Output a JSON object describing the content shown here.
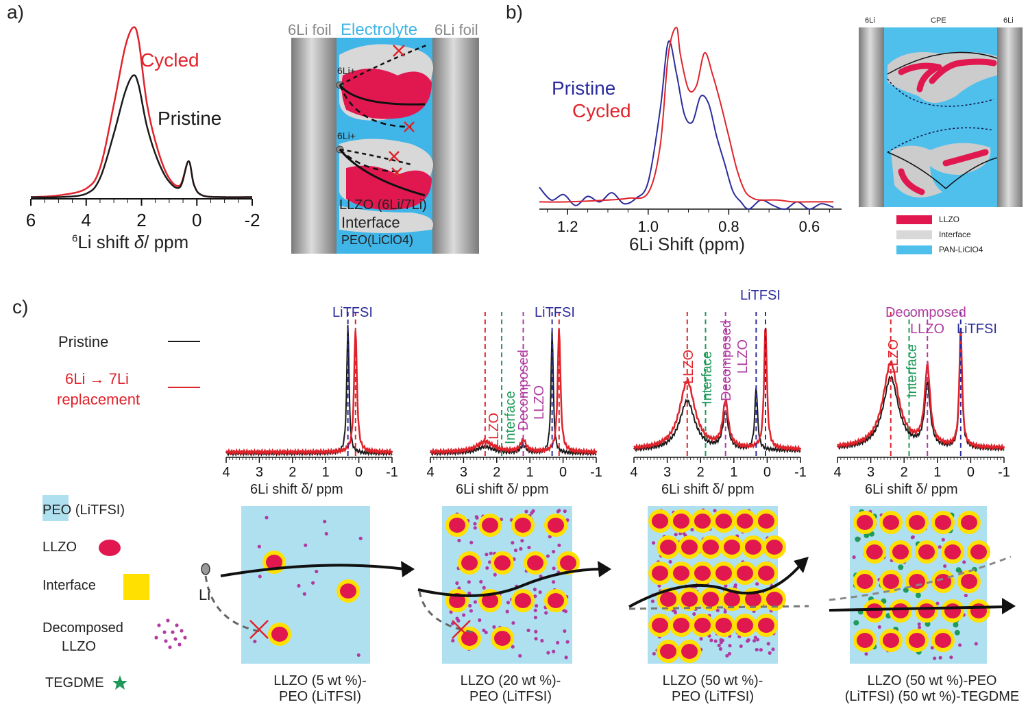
{
  "panel_letters": {
    "a": "a)",
    "b": "b)",
    "c": "c)"
  },
  "a": {
    "legend_cycled": "Cycled",
    "legend_pristine": "Pristine",
    "xlabel": "6Li shift  δ / ppm",
    "xlabel_parts": {
      "sup": "6",
      "main": "Li shift ",
      "delta": "δ",
      "unit": "/ ppm"
    },
    "ticks": [
      "6",
      "4",
      "2",
      "0",
      "-2"
    ],
    "schem": {
      "left_foil": "6Li foil",
      "electrolyte": "Electrolyte",
      "right_foil": "6Li foil",
      "li_ion_1": "6Li+",
      "li_ion_2": "6Li+",
      "llzo": "LLZO (6Li/7Li)",
      "interface": "Interface",
      "peo": "PEO(LiClO4)"
    }
  },
  "b": {
    "legend_pristine": "Pristine",
    "legend_cycled": "Cycled",
    "xlabel": "6Li Shift (ppm)",
    "ticks": [
      "1.2",
      "1.0",
      "0.8",
      "0.6"
    ],
    "schem": {
      "left": "6Li",
      "middle": "CPE",
      "right": "6Li",
      "legend": [
        "LLZO",
        "Interface",
        "PAN-LiClO4"
      ]
    }
  },
  "c": {
    "legend_pristine": "Pristine",
    "legend_replace_1": "6Li → 7Li",
    "legend_replace_2": "replacement",
    "ticks": [
      "4",
      "3",
      "2",
      "1",
      "0",
      "-1"
    ],
    "xlabel": "6Li shift δ/ ppm",
    "spectra_labels": {
      "s1": {
        "litfsi": "LiTFSI"
      },
      "s2": {
        "litfsi": "LiTFSI",
        "llzo": "LLZO",
        "interface": "Interface",
        "decomposed": "Decomposed",
        "llzo2": "LLZO"
      },
      "s3": {
        "litfsi": "LiTFSI",
        "llzo": "LLZO",
        "interface": "Interface",
        "decomposed": "Decomposed",
        "llzo2": "LLZO"
      },
      "s4": {
        "llzo": "LLZO",
        "interface": "Interface",
        "decomposed": "Decomposed",
        "llzo2": "LLZO",
        "litfsi": "LiTFSI"
      }
    },
    "legend_items": [
      "PEO (LiTFSI)",
      "LLZO",
      "Interface",
      "Decomposed",
      "LLZO",
      "TEGDME"
    ],
    "li_label": "Li",
    "captions": [
      [
        "LLZO (5 wt %)-",
        "PEO (LiTFSI)"
      ],
      [
        "LLZO (20 wt %)-",
        "PEO (LiTFSI)"
      ],
      [
        "LLZO (50 wt %)-",
        "PEO (LiTFSI)"
      ],
      [
        "LLZO (50 wt %)-PEO",
        "(LiTFSI) (50 wt %)-TEGDME"
      ]
    ]
  },
  "colors": {
    "red": "#e0232b",
    "black": "#1a1a1a",
    "blue": "#2c2c9c",
    "green": "#1f9a5a",
    "magenta": "#b03aa0",
    "cyan": "#9fd8ea",
    "llzo": "#e0184f",
    "yellow": "#ffe000",
    "interface_gray": "#d0d0d0"
  },
  "chart_data": [
    {
      "type": "line",
      "panel": "a",
      "xlabel": "6Li shift δ / ppm",
      "xlim": [
        6,
        -2
      ],
      "series": [
        {
          "name": "Cycled",
          "x": [
            6,
            5,
            4,
            3.5,
            3,
            2.6,
            2.3,
            2.1,
            1.8,
            1.4,
            1,
            0.6,
            0.3,
            0.1,
            -0.2,
            -1,
            -2
          ],
          "y": [
            0.01,
            0.02,
            0.06,
            0.18,
            0.55,
            0.88,
            1.0,
            0.92,
            0.55,
            0.28,
            0.12,
            0.08,
            0.22,
            0.08,
            0.02,
            0.01,
            0.01
          ]
        },
        {
          "name": "Pristine",
          "x": [
            6,
            5,
            4,
            3.5,
            3,
            2.6,
            2.3,
            2.1,
            1.8,
            1.4,
            1,
            0.6,
            0.3,
            0.1,
            -0.2,
            -1,
            -2
          ],
          "y": [
            0.01,
            0.01,
            0.03,
            0.12,
            0.38,
            0.62,
            0.72,
            0.66,
            0.42,
            0.22,
            0.1,
            0.07,
            0.22,
            0.08,
            0.02,
            0.01,
            0.01
          ]
        }
      ]
    },
    {
      "type": "line",
      "panel": "b",
      "xlabel": "6Li Shift (ppm)",
      "xlim": [
        1.27,
        0.52
      ],
      "series": [
        {
          "name": "Pristine",
          "x": [
            1.27,
            1.24,
            1.21,
            1.18,
            1.15,
            1.12,
            1.09,
            1.06,
            1.03,
            1.0,
            0.97,
            0.95,
            0.93,
            0.91,
            0.89,
            0.87,
            0.85,
            0.83,
            0.81,
            0.79,
            0.77,
            0.75,
            0.72,
            0.69,
            0.66,
            0.63,
            0.6,
            0.57,
            0.54
          ],
          "y": [
            0.12,
            0.05,
            0.08,
            0.02,
            0.07,
            0.04,
            0.09,
            0.03,
            0.06,
            0.15,
            0.55,
            0.92,
            0.75,
            0.52,
            0.48,
            0.62,
            0.58,
            0.4,
            0.25,
            0.1,
            0.04,
            0.0,
            0.05,
            0.02,
            0.0,
            0.04,
            0.0,
            0.03,
            0.01
          ]
        },
        {
          "name": "Cycled",
          "x": [
            1.27,
            1.2,
            1.1,
            1.05,
            1.0,
            0.97,
            0.95,
            0.93,
            0.92,
            0.9,
            0.88,
            0.86,
            0.84,
            0.82,
            0.8,
            0.78,
            0.76,
            0.74,
            0.72,
            0.68,
            0.64,
            0.6,
            0.56,
            0.54
          ],
          "y": [
            0.04,
            0.04,
            0.05,
            0.06,
            0.09,
            0.35,
            0.85,
            1.0,
            0.85,
            0.66,
            0.68,
            0.86,
            0.74,
            0.58,
            0.4,
            0.22,
            0.1,
            0.06,
            0.05,
            0.05,
            0.04,
            0.04,
            0.04,
            0.04
          ]
        }
      ]
    },
    {
      "type": "line",
      "panel": "c1",
      "xlabel": "6Li shift δ/ ppm",
      "xlim": [
        4,
        -1
      ],
      "series": [
        {
          "name": "Pristine",
          "peaks": [
            {
              "x": 0.33,
              "h": 1.0,
              "w": 0.04
            }
          ],
          "baseline": 0.02
        },
        {
          "name": "6Li → 7Li replacement",
          "peaks": [
            {
              "x": 0.1,
              "h": 0.95,
              "w": 0.05
            }
          ],
          "baseline": 0.03
        }
      ]
    },
    {
      "type": "line",
      "panel": "c2",
      "xlabel": "6Li shift δ/ ppm",
      "xlim": [
        4,
        -1
      ],
      "series": [
        {
          "name": "Pristine",
          "peaks": [
            {
              "x": 2.35,
              "h": 0.05,
              "w": 0.3
            },
            {
              "x": 1.2,
              "h": 0.06,
              "w": 0.1
            },
            {
              "x": 0.33,
              "h": 0.95,
              "w": 0.04
            }
          ],
          "baseline": 0.02
        },
        {
          "name": "6Li → 7Li replacement",
          "peaks": [
            {
              "x": 2.35,
              "h": 0.08,
              "w": 0.3
            },
            {
              "x": 1.2,
              "h": 0.09,
              "w": 0.1
            },
            {
              "x": 0.12,
              "h": 0.95,
              "w": 0.05
            }
          ],
          "baseline": 0.03
        }
      ]
    },
    {
      "type": "line",
      "panel": "c3",
      "xlabel": "6Li shift δ/ ppm",
      "xlim": [
        4,
        -1
      ],
      "series": [
        {
          "name": "Pristine",
          "peaks": [
            {
              "x": 2.4,
              "h": 0.38,
              "w": 0.28
            },
            {
              "x": 1.25,
              "h": 0.28,
              "w": 0.1
            },
            {
              "x": 0.33,
              "h": 0.48,
              "w": 0.05
            }
          ],
          "baseline": 0.04
        },
        {
          "name": "6Li → 7Li replacement",
          "peaks": [
            {
              "x": 2.4,
              "h": 0.52,
              "w": 0.28
            },
            {
              "x": 1.25,
              "h": 0.35,
              "w": 0.1
            },
            {
              "x": 0.05,
              "h": 0.95,
              "w": 0.05
            }
          ],
          "baseline": 0.05
        }
      ]
    },
    {
      "type": "line",
      "panel": "c4",
      "xlabel": "6Li shift δ/ ppm",
      "xlim": [
        4,
        -1
      ],
      "series": [
        {
          "name": "Pristine",
          "peaks": [
            {
              "x": 2.4,
              "h": 0.55,
              "w": 0.28
            },
            {
              "x": 1.3,
              "h": 0.48,
              "w": 0.1
            },
            {
              "x": 0.3,
              "h": 0.85,
              "w": 0.05
            }
          ],
          "baseline": 0.05
        },
        {
          "name": "6Li → 7Li replacement",
          "peaks": [
            {
              "x": 2.4,
              "h": 0.65,
              "w": 0.28
            },
            {
              "x": 1.3,
              "h": 0.6,
              "w": 0.1
            },
            {
              "x": 0.3,
              "h": 0.92,
              "w": 0.05
            }
          ],
          "baseline": 0.06
        }
      ]
    }
  ]
}
